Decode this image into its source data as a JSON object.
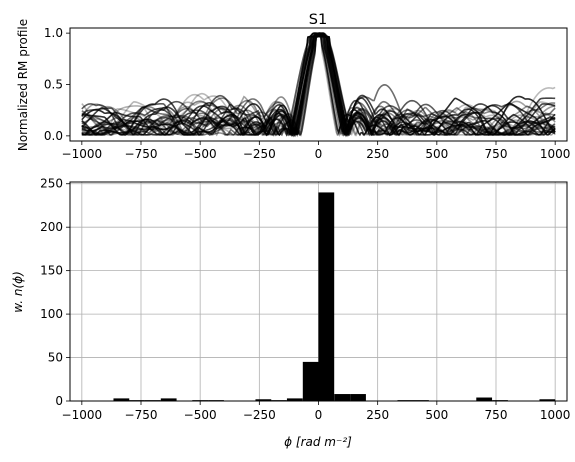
{
  "chart_data": [
    {
      "type": "line",
      "title": "S1",
      "xlabel": "",
      "ylabel": "Normalized RM profile",
      "xlim": [
        -1050,
        1050
      ],
      "ylim": [
        -0.05,
        1.05
      ],
      "xticks": [
        -1000,
        -750,
        -500,
        -250,
        0,
        250,
        500,
        750,
        1000
      ],
      "xtick_labels": [
        "−1000",
        "−750",
        "−500",
        "−250",
        "0",
        "250",
        "500",
        "750",
        "1000"
      ],
      "yticks": [
        0.0,
        0.5,
        1.0
      ],
      "ytick_labels": [
        "0.0",
        "0.5",
        "1.0"
      ],
      "grid": false,
      "line_color": "#000000",
      "series_count": 30
    },
    {
      "type": "bar",
      "title": "",
      "xlabel": "ϕ [rad m⁻²]",
      "ylabel": "w. n(ϕ)",
      "xlim": [
        -1050,
        1050
      ],
      "ylim": [
        0,
        252
      ],
      "xticks": [
        -1000,
        -750,
        -500,
        -250,
        0,
        250,
        500,
        750,
        1000
      ],
      "xtick_labels": [
        "−1000",
        "−750",
        "−500",
        "−250",
        "0",
        "250",
        "500",
        "750",
        "1000"
      ],
      "yticks": [
        0,
        50,
        100,
        150,
        200,
        250
      ],
      "ytick_labels": [
        "0",
        "50",
        "100",
        "150",
        "200",
        "250"
      ],
      "grid": true,
      "bar_color": "#000000",
      "bin_width": 66.67,
      "bin_centers": [
        -967,
        -900,
        -833,
        -767,
        -700,
        -633,
        -567,
        -500,
        -433,
        -367,
        -300,
        -233,
        -167,
        -100,
        -33,
        33,
        100,
        167,
        233,
        300,
        367,
        433,
        500,
        567,
        633,
        700,
        767,
        833,
        900,
        967
      ],
      "values": [
        0,
        0,
        3,
        1,
        1,
        3,
        0,
        1,
        1,
        0,
        0,
        2,
        1,
        3,
        45,
        240,
        8,
        8,
        0,
        0,
        1,
        1,
        0,
        0,
        0,
        4,
        1,
        0,
        0,
        2
      ]
    }
  ]
}
